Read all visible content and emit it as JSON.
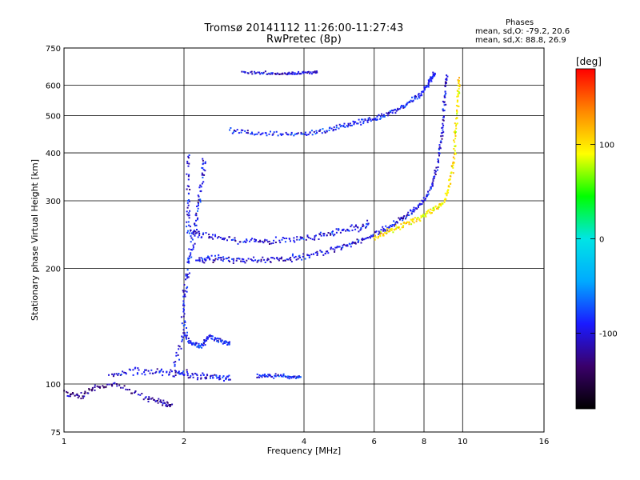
{
  "title": "Tromsø 20141112 11:26:00-11:27:43",
  "subtitle": "RwPretec (8p)",
  "phase_info": {
    "heading": "Phases",
    "o_line": "mean, sd,O: -79.2, 20.6",
    "x_line": "mean, sd,X:  88.8, 26.9"
  },
  "chart_data": {
    "type": "scatter",
    "xlabel": "Frequency [MHz]",
    "ylabel": "Stationary phase Virtual Height [km]",
    "xscale": "log",
    "yscale": "log",
    "xlim": [
      1,
      16
    ],
    "ylim": [
      75,
      750
    ],
    "x_ticks": [
      1,
      2,
      4,
      6,
      8,
      10,
      16
    ],
    "y_ticks": [
      75,
      100,
      200,
      300,
      400,
      500,
      600,
      750
    ],
    "grid": true,
    "colorbar": {
      "label": "[deg]",
      "range": [
        -180,
        180
      ],
      "ticks": [
        100,
        0,
        -100
      ],
      "colors": [
        "#000000",
        "#3a006a",
        "#1a1aff",
        "#00aaff",
        "#00e5e5",
        "#00ff00",
        "#ffff00",
        "#ff8800",
        "#ff0000"
      ]
    },
    "traces": [
      {
        "name": "",
        "phase": -100,
        "jitter": 0.012,
        "points": [
          [
            2.15,
            210
          ],
          [
            2.3,
            212
          ],
          [
            2.5,
            212
          ],
          [
            2.8,
            210
          ],
          [
            3.2,
            210
          ],
          [
            3.6,
            212
          ],
          [
            4.0,
            215
          ],
          [
            4.5,
            220
          ],
          [
            5.0,
            228
          ],
          [
            5.5,
            235
          ],
          [
            6.0,
            245
          ],
          [
            6.5,
            255
          ],
          [
            7.0,
            268
          ],
          [
            7.5,
            282
          ],
          [
            8.0,
            300
          ],
          [
            8.4,
            330
          ],
          [
            8.7,
            380
          ],
          [
            8.9,
            450
          ],
          [
            9.0,
            540
          ],
          [
            9.1,
            630
          ]
        ]
      },
      {
        "name": "",
        "phase": -100,
        "jitter": 0.015,
        "points": [
          [
            2.05,
            400
          ],
          [
            2.05,
            300
          ],
          [
            2.05,
            250
          ],
          [
            2.2,
            245
          ],
          [
            2.5,
            240
          ],
          [
            2.9,
            235
          ],
          [
            3.3,
            235
          ],
          [
            3.8,
            238
          ],
          [
            4.3,
            242
          ],
          [
            4.8,
            248
          ],
          [
            5.3,
            255
          ],
          [
            5.8,
            260
          ]
        ]
      },
      {
        "name": "",
        "phase": -90,
        "jitter": 0.01,
        "points": [
          [
            2.6,
            460
          ],
          [
            3.0,
            450
          ],
          [
            3.5,
            445
          ],
          [
            4.0,
            448
          ],
          [
            4.5,
            458
          ],
          [
            5.0,
            470
          ],
          [
            5.5,
            480
          ],
          [
            6.0,
            490
          ],
          [
            6.5,
            505
          ],
          [
            7.0,
            525
          ],
          [
            7.5,
            550
          ],
          [
            8.0,
            580
          ],
          [
            8.3,
            620
          ],
          [
            8.5,
            640
          ]
        ]
      },
      {
        "name": "",
        "phase": 100,
        "jitter": 0.012,
        "points": [
          [
            6.0,
            240
          ],
          [
            6.5,
            250
          ],
          [
            7.0,
            258
          ],
          [
            7.5,
            265
          ],
          [
            8.0,
            275
          ],
          [
            8.5,
            285
          ],
          [
            9.0,
            300
          ],
          [
            9.3,
            330
          ],
          [
            9.5,
            380
          ],
          [
            9.6,
            450
          ],
          [
            9.7,
            540
          ],
          [
            9.8,
            620
          ]
        ]
      },
      {
        "name": "",
        "phase": -95,
        "jitter": 0.02,
        "points": [
          [
            1.9,
            110
          ],
          [
            2.0,
            140
          ],
          [
            2.0,
            170
          ],
          [
            2.05,
            200
          ],
          [
            2.1,
            230
          ],
          [
            2.15,
            270
          ],
          [
            2.2,
            320
          ],
          [
            2.25,
            380
          ]
        ]
      },
      {
        "name": "",
        "phase": -95,
        "jitter": 0.015,
        "points": [
          [
            1.3,
            105
          ],
          [
            1.5,
            108
          ],
          [
            1.7,
            108
          ],
          [
            1.9,
            107
          ],
          [
            2.0,
            106
          ],
          [
            2.2,
            105
          ],
          [
            2.4,
            105
          ],
          [
            2.6,
            104
          ]
        ]
      },
      {
        "name": "",
        "phase": -90,
        "jitter": 0.012,
        "points": [
          [
            2.0,
            135
          ],
          [
            2.1,
            128
          ],
          [
            2.2,
            125
          ],
          [
            2.3,
            132
          ],
          [
            2.45,
            130
          ],
          [
            2.6,
            128
          ]
        ]
      },
      {
        "name": "",
        "phase": -120,
        "jitter": 0.012,
        "points": [
          [
            1.0,
            95
          ],
          [
            1.1,
            93
          ],
          [
            1.2,
            98
          ],
          [
            1.35,
            100
          ],
          [
            1.6,
            92
          ],
          [
            1.75,
            90
          ],
          [
            1.85,
            88
          ]
        ]
      },
      {
        "name": "",
        "phase": -100,
        "jitter": 0.006,
        "points": [
          [
            2.8,
            650
          ],
          [
            3.2,
            645
          ],
          [
            3.6,
            640
          ],
          [
            3.9,
            645
          ],
          [
            4.3,
            648
          ]
        ]
      },
      {
        "name": "",
        "phase": -90,
        "jitter": 0.008,
        "points": [
          [
            3.05,
            105
          ],
          [
            3.3,
            105
          ],
          [
            3.6,
            105
          ],
          [
            3.9,
            104
          ]
        ]
      }
    ]
  }
}
